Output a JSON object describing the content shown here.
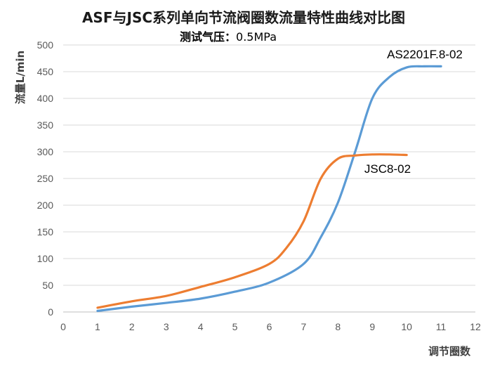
{
  "chart_data": {
    "type": "line",
    "title": "ASF与JSC系列单向节流阀圈数流量特性曲线对比图",
    "subtitle_label": "测试气压：",
    "subtitle_value": "0.5MPa",
    "xlabel": "调节圈数",
    "ylabel": "流量L/min",
    "xlim": [
      0,
      12
    ],
    "ylim": [
      0,
      500
    ],
    "xticks": [
      0,
      1,
      2,
      3,
      4,
      5,
      6,
      7,
      8,
      9,
      10,
      11,
      12
    ],
    "yticks": [
      0,
      50,
      100,
      150,
      200,
      250,
      300,
      350,
      400,
      450,
      500
    ],
    "grid": "horizontal",
    "legend": "none",
    "series": [
      {
        "name": "AS2201F.8-02",
        "color": "#5B9BD5",
        "x": [
          1,
          2,
          3,
          4,
          5,
          6,
          7,
          7.5,
          8,
          8.5,
          9,
          9.5,
          10,
          10.5,
          11
        ],
        "y": [
          2,
          10,
          17,
          25,
          38,
          55,
          90,
          140,
          205,
          300,
          400,
          440,
          458,
          460,
          460
        ]
      },
      {
        "name": "JSC8-02",
        "color": "#ED7D31",
        "x": [
          1,
          2,
          3,
          4,
          5,
          6,
          6.5,
          7,
          7.5,
          8,
          8.5,
          9,
          9.5,
          10
        ],
        "y": [
          8,
          20,
          30,
          47,
          65,
          90,
          120,
          170,
          250,
          287,
          293,
          295,
          295,
          294
        ]
      }
    ]
  }
}
